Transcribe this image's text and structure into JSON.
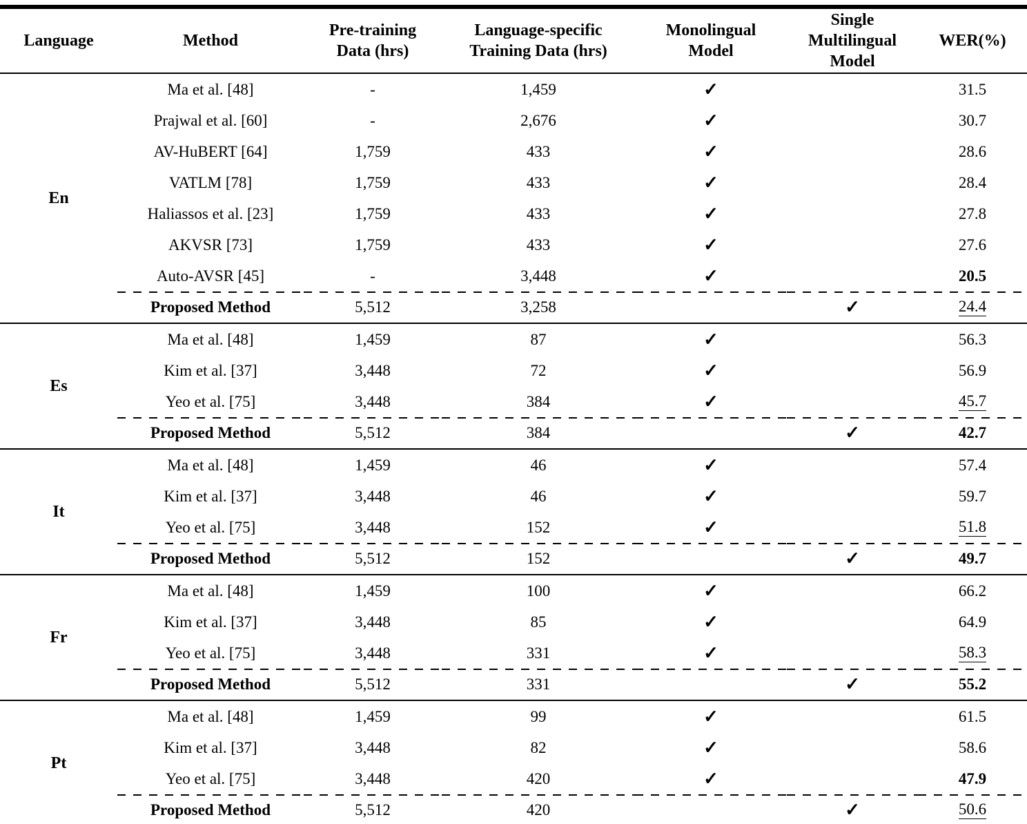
{
  "table": {
    "check_glyph": "✓",
    "columns": [
      {
        "label": "Language"
      },
      {
        "label": "Method"
      },
      {
        "label": "Pre-training\nData (hrs)"
      },
      {
        "label": "Language-specific\nTraining Data (hrs)"
      },
      {
        "label": "Monolingual\nModel"
      },
      {
        "label": "Single\nMultilingual\nModel"
      },
      {
        "label": "WER(%)"
      }
    ],
    "sections": [
      {
        "language": "En",
        "rows": [
          {
            "method": "Ma et al. [48]",
            "pretrain": "-",
            "training": "1,459",
            "monolingual": true,
            "multilingual": false,
            "wer": "31.5",
            "wer_bold": false,
            "wer_underline": false,
            "proposed": false
          },
          {
            "method": "Prajwal et al. [60]",
            "pretrain": "-",
            "training": "2,676",
            "monolingual": true,
            "multilingual": false,
            "wer": "30.7",
            "wer_bold": false,
            "wer_underline": false,
            "proposed": false
          },
          {
            "method": "AV-HuBERT [64]",
            "pretrain": "1,759",
            "training": "433",
            "monolingual": true,
            "multilingual": false,
            "wer": "28.6",
            "wer_bold": false,
            "wer_underline": false,
            "proposed": false
          },
          {
            "method": "VATLM [78]",
            "pretrain": "1,759",
            "training": "433",
            "monolingual": true,
            "multilingual": false,
            "wer": "28.4",
            "wer_bold": false,
            "wer_underline": false,
            "proposed": false
          },
          {
            "method": "Haliassos et al. [23]",
            "pretrain": "1,759",
            "training": "433",
            "monolingual": true,
            "multilingual": false,
            "wer": "27.8",
            "wer_bold": false,
            "wer_underline": false,
            "proposed": false
          },
          {
            "method": "AKVSR [73]",
            "pretrain": "1,759",
            "training": "433",
            "monolingual": true,
            "multilingual": false,
            "wer": "27.6",
            "wer_bold": false,
            "wer_underline": false,
            "proposed": false
          },
          {
            "method": "Auto-AVSR [45]",
            "pretrain": "-",
            "training": "3,448",
            "monolingual": true,
            "multilingual": false,
            "wer": "20.5",
            "wer_bold": true,
            "wer_underline": false,
            "proposed": false
          },
          {
            "method": "Proposed Method",
            "pretrain": "5,512",
            "training": "3,258",
            "monolingual": false,
            "multilingual": true,
            "wer": "24.4",
            "wer_bold": false,
            "wer_underline": true,
            "proposed": true
          }
        ]
      },
      {
        "language": "Es",
        "rows": [
          {
            "method": "Ma et al. [48]",
            "pretrain": "1,459",
            "training": "87",
            "monolingual": true,
            "multilingual": false,
            "wer": "56.3",
            "wer_bold": false,
            "wer_underline": false,
            "proposed": false
          },
          {
            "method": "Kim et al. [37]",
            "pretrain": "3,448",
            "training": "72",
            "monolingual": true,
            "multilingual": false,
            "wer": "56.9",
            "wer_bold": false,
            "wer_underline": false,
            "proposed": false
          },
          {
            "method": "Yeo et al. [75]",
            "pretrain": "3,448",
            "training": "384",
            "monolingual": true,
            "multilingual": false,
            "wer": "45.7",
            "wer_bold": false,
            "wer_underline": true,
            "proposed": false
          },
          {
            "method": "Proposed Method",
            "pretrain": "5,512",
            "training": "384",
            "monolingual": false,
            "multilingual": true,
            "wer": "42.7",
            "wer_bold": true,
            "wer_underline": false,
            "proposed": true
          }
        ]
      },
      {
        "language": "It",
        "rows": [
          {
            "method": "Ma et al. [48]",
            "pretrain": "1,459",
            "training": "46",
            "monolingual": true,
            "multilingual": false,
            "wer": "57.4",
            "wer_bold": false,
            "wer_underline": false,
            "proposed": false
          },
          {
            "method": "Kim et al. [37]",
            "pretrain": "3,448",
            "training": "46",
            "monolingual": true,
            "multilingual": false,
            "wer": "59.7",
            "wer_bold": false,
            "wer_underline": false,
            "proposed": false
          },
          {
            "method": "Yeo et al. [75]",
            "pretrain": "3,448",
            "training": "152",
            "monolingual": true,
            "multilingual": false,
            "wer": "51.8",
            "wer_bold": false,
            "wer_underline": true,
            "proposed": false
          },
          {
            "method": "Proposed Method",
            "pretrain": "5,512",
            "training": "152",
            "monolingual": false,
            "multilingual": true,
            "wer": "49.7",
            "wer_bold": true,
            "wer_underline": false,
            "proposed": true
          }
        ]
      },
      {
        "language": "Fr",
        "rows": [
          {
            "method": "Ma et al. [48]",
            "pretrain": "1,459",
            "training": "100",
            "monolingual": true,
            "multilingual": false,
            "wer": "66.2",
            "wer_bold": false,
            "wer_underline": false,
            "proposed": false
          },
          {
            "method": "Kim et al. [37]",
            "pretrain": "3,448",
            "training": "85",
            "monolingual": true,
            "multilingual": false,
            "wer": "64.9",
            "wer_bold": false,
            "wer_underline": false,
            "proposed": false
          },
          {
            "method": "Yeo et al. [75]",
            "pretrain": "3,448",
            "training": "331",
            "monolingual": true,
            "multilingual": false,
            "wer": "58.3",
            "wer_bold": false,
            "wer_underline": true,
            "proposed": false
          },
          {
            "method": "Proposed Method",
            "pretrain": "5,512",
            "training": "331",
            "monolingual": false,
            "multilingual": true,
            "wer": "55.2",
            "wer_bold": true,
            "wer_underline": false,
            "proposed": true
          }
        ]
      },
      {
        "language": "Pt",
        "rows": [
          {
            "method": "Ma et al. [48]",
            "pretrain": "1,459",
            "training": "99",
            "monolingual": true,
            "multilingual": false,
            "wer": "61.5",
            "wer_bold": false,
            "wer_underline": false,
            "proposed": false
          },
          {
            "method": "Kim et al. [37]",
            "pretrain": "3,448",
            "training": "82",
            "monolingual": true,
            "multilingual": false,
            "wer": "58.6",
            "wer_bold": false,
            "wer_underline": false,
            "proposed": false
          },
          {
            "method": "Yeo et al. [75]",
            "pretrain": "3,448",
            "training": "420",
            "monolingual": true,
            "multilingual": false,
            "wer": "47.9",
            "wer_bold": true,
            "wer_underline": false,
            "proposed": false
          },
          {
            "method": "Proposed Method",
            "pretrain": "5,512",
            "training": "420",
            "monolingual": false,
            "multilingual": true,
            "wer": "50.6",
            "wer_bold": false,
            "wer_underline": true,
            "proposed": true
          }
        ]
      }
    ]
  }
}
